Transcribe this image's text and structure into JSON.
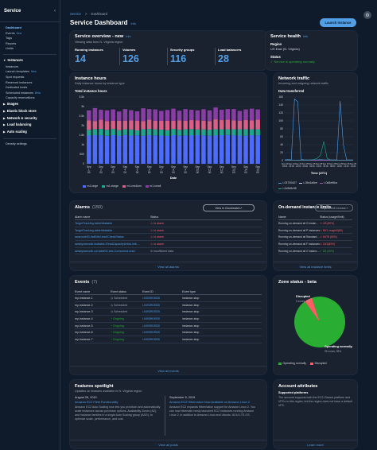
{
  "sidebar": {
    "title": "Service",
    "items": [
      {
        "label": "Dashboard",
        "type": "link",
        "active": true
      },
      {
        "label": "Events",
        "type": "link",
        "badge": "New"
      },
      {
        "label": "Tags",
        "type": "link"
      },
      {
        "label": "Reports",
        "type": "link"
      },
      {
        "label": "Limits",
        "type": "link"
      },
      {
        "type": "divider"
      },
      {
        "label": "Instances",
        "type": "header",
        "open": true
      },
      {
        "label": "Instances",
        "type": "link"
      },
      {
        "label": "Launch templates",
        "type": "link",
        "badge": "New"
      },
      {
        "label": "Spot requests",
        "type": "link"
      },
      {
        "label": "Reserved instances",
        "type": "link"
      },
      {
        "label": "Dedicated hosts",
        "type": "link"
      },
      {
        "label": "Scheduled instances",
        "type": "link",
        "badge": "Beta"
      },
      {
        "label": "Capacity reservations",
        "type": "link"
      },
      {
        "label": "Images",
        "type": "header",
        "open": false
      },
      {
        "label": "Elastic block store",
        "type": "header",
        "open": false
      },
      {
        "label": "Network & security",
        "type": "header",
        "open": false
      },
      {
        "label": "Load balancing",
        "type": "header",
        "open": false
      },
      {
        "label": "Auto scaling",
        "type": "header",
        "open": false
      },
      {
        "type": "divider"
      },
      {
        "label": "Density settings",
        "type": "link"
      }
    ]
  },
  "breadcrumb": {
    "root": "Service",
    "sep": ">",
    "current": "Dashboard"
  },
  "header": {
    "title": "Service Dashboard",
    "info": "Info",
    "launch_label": "Launch instance"
  },
  "overview": {
    "title": "Service overview - new",
    "info": "Info",
    "desc": "Viewing data from N. Virginia region",
    "kpis": [
      {
        "label": "Running instances",
        "value": "14"
      },
      {
        "label": "Volumes",
        "value": "126"
      },
      {
        "label": "Security groups",
        "value": "116"
      },
      {
        "label": "Load balancers",
        "value": "28"
      }
    ]
  },
  "health": {
    "title": "Service health",
    "info": "Info",
    "region_label": "Region",
    "region_value": "US East (N. Virginia)",
    "status_label": "Status",
    "status_value": "Service is operating normally"
  },
  "instance_hours": {
    "title": "Instance hours",
    "desc": "Daily instance hours by instance type",
    "chart_title": "Total instance hours",
    "xlabel": "Date",
    "ticks_x": [
      "Sep\n1\n00",
      "Sep\n2\n00",
      "Sep\n3\n00",
      "Sep\n4\n00",
      "Sep\n5\n00",
      "Sep\n6\n00",
      "Sep\n7\n00",
      "Sep\n8\n00",
      "Sep\n9\n00",
      "Sep\n10\n00",
      "Sep\n11\n00",
      "Sep\n12\n00",
      "Sep\n13\n00",
      "Sep\n14\n00",
      "Sep\n15\n00"
    ],
    "ticks_y": [
      "0",
      "500",
      "1k",
      "1.5k",
      "2k",
      "2.5k",
      "3k",
      "3.5k"
    ],
    "legend": [
      "m1.large",
      "m1.xlarge",
      "m1.medium",
      "m1.small"
    ]
  },
  "network": {
    "title": "Network traffic",
    "desc": "Incoming and outgoing network traffic",
    "chart_title": "Data transferred",
    "xlabel": "Time (UTC)",
    "ticks_y": [
      "0",
      "20",
      "40",
      "60",
      "80",
      "100",
      "120",
      "140",
      "160"
    ],
    "ticks_x": [
      "Sep 24\n18:00",
      "Sep 24\n20:00",
      "Sep 24\n22:00",
      "Sep 25\n00:00",
      "Sep 25\n02:00",
      "Sep 25\n04:00",
      "Sep 25\n06:00",
      "Sep 25\n08:00",
      "Sep 25\n10:00",
      "Sep 25\n12:00",
      "Sep 25\n14:00"
    ],
    "legend": [
      "i-03730407",
      "i-05d4a5ee",
      "i-0a8ef6ba",
      "i-0c5b8c38"
    ]
  },
  "chart_data": [
    {
      "type": "bar",
      "stacked": true,
      "title": "Total instance hours",
      "xlabel": "Date",
      "ylabel": "",
      "ylim": [
        0,
        3500
      ],
      "categories": [
        "Sep 1",
        "",
        "Sep 2",
        "",
        "Sep 3",
        "",
        "Sep 4",
        "",
        "Sep 5",
        "",
        "Sep 6",
        "",
        "Sep 7",
        "",
        "Sep 8",
        "",
        "Sep 9",
        "",
        "Sep 10",
        "",
        "Sep 11",
        "",
        "Sep 12",
        "",
        "Sep 13",
        "",
        "Sep 14",
        "",
        "Sep 15"
      ],
      "series": [
        {
          "name": "m1.large",
          "color": "#4d6bff",
          "values": [
            1480,
            1500,
            1490,
            1470,
            1500,
            1460,
            1510,
            1480,
            1490,
            1470,
            1500,
            1490,
            1480,
            1460,
            1500,
            1470,
            1490,
            1480,
            1500,
            1490,
            1470,
            1480,
            1500,
            1510,
            1490,
            1480,
            1470,
            1500,
            1490
          ]
        },
        {
          "name": "m1.xlarge",
          "color": "#1fa68f",
          "values": [
            300,
            320,
            340,
            310,
            330,
            300,
            300,
            320,
            260,
            340,
            330,
            320,
            310,
            300,
            330,
            310,
            320,
            340,
            300,
            310,
            320,
            330,
            310,
            300,
            320,
            330,
            340,
            310,
            320
          ]
        },
        {
          "name": "m1.medium",
          "color": "#d95f87",
          "values": [
            500,
            420,
            480,
            460,
            420,
            500,
            440,
            470,
            500,
            420,
            480,
            440,
            460,
            500,
            420,
            500,
            440,
            470,
            480,
            460,
            450,
            520,
            480,
            500,
            460,
            440,
            480,
            460,
            500
          ]
        },
        {
          "name": "m1.small",
          "color": "#8a3ea5",
          "values": [
            520,
            680,
            520,
            560,
            600,
            480,
            620,
            540,
            500,
            680,
            560,
            600,
            520,
            560,
            640,
            500,
            620,
            540,
            520,
            600,
            560,
            620,
            540,
            560,
            600,
            520,
            560,
            620,
            540
          ]
        }
      ]
    },
    {
      "type": "line",
      "title": "Data transferred",
      "xlabel": "Time (UTC)",
      "ylabel": "",
      "ylim": [
        0,
        160
      ],
      "x": [
        "18:00",
        "19:00",
        "20:00",
        "21:00",
        "22:00",
        "23:00",
        "00:00",
        "01:00",
        "02:00",
        "03:00",
        "04:00",
        "05:00",
        "06:00",
        "07:00",
        "08:00",
        "09:00",
        "10:00",
        "11:00",
        "12:00",
        "13:00",
        "14:00",
        "15:00"
      ],
      "series": [
        {
          "name": "i-03730407",
          "color": "#539fe5",
          "values": [
            2,
            3,
            2,
            155,
            148,
            3,
            2,
            2,
            2,
            2,
            2,
            3,
            2,
            2,
            2,
            2,
            2,
            150,
            40,
            2,
            2,
            2
          ]
        },
        {
          "name": "i-05d4a5ee",
          "color": "#c2d4ff",
          "values": [
            1,
            1,
            1,
            1,
            1,
            1,
            1,
            1,
            1,
            1,
            1,
            1,
            1,
            1,
            1,
            1,
            1,
            1,
            1,
            1,
            1,
            1
          ]
        },
        {
          "name": "i-0a8ef6ba",
          "color": "#b14fc5",
          "values": [
            1,
            1,
            1,
            1,
            1,
            1,
            1,
            1,
            1,
            1,
            1,
            1,
            1,
            1,
            1,
            1,
            1,
            1,
            1,
            1,
            1,
            1
          ]
        },
        {
          "name": "i-0c5b8c38",
          "color": "#1fa68f",
          "values": [
            1,
            1,
            1,
            1,
            1,
            1,
            1,
            1,
            2,
            3,
            6,
            14,
            48,
            6,
            2,
            1,
            1,
            1,
            1,
            1,
            1,
            1
          ]
        }
      ]
    },
    {
      "type": "pie",
      "title": "",
      "categories": [
        "Operating normally",
        "Disrupted"
      ],
      "values": [
        95,
        5
      ],
      "colors": [
        "#29ad32",
        "#ff5d64"
      ]
    }
  ],
  "alarms": {
    "title": "Alarms",
    "count": "(150)",
    "cw_btn": "View in Cloudwatch",
    "col_name": "Alarm name",
    "col_status": "Status",
    "rows": [
      {
        "name": "TargetTracking-table/dbstable",
        "status": "In alarm",
        "kind": "alarm"
      },
      {
        "name": "TargetTracking-table/dbstable",
        "status": "In alarm",
        "kind": "alarm"
      },
      {
        "name": "awsroute53-9a6f4fcf-low0CheckStatus",
        "status": "In alarm",
        "kind": "alarm"
      },
      {
        "name": "awsdynamodb-testtable-ReadCapacityUnitsLimit-...",
        "status": "In alarm",
        "kind": "alarm"
      },
      {
        "name": "awsdynamodb-rpt-table04-test-Consumed-read",
        "status": "Insufficient data",
        "kind": "insufficient"
      }
    ],
    "footer": "View all alarms"
  },
  "limits": {
    "title": "On-demand instance limits",
    "req_btn": "Request limit increase",
    "col_name": "Name",
    "col_status": "Status (usage/limit)",
    "rows": [
      {
        "name": "Running on-demand all G instances",
        "status": "4/5 (80%)",
        "kind": "warn"
      },
      {
        "name": "Running on-demand all P instances",
        "status": "86/1 usage/6(80)",
        "kind": "warn"
      },
      {
        "name": "Running on-demand all Standard instan...",
        "status": "60/78 (80%)",
        "kind": "warn"
      },
      {
        "name": "Running on-demand all F instances",
        "status": "18/1(80%)",
        "kind": "warn"
      },
      {
        "name": "Running on-demand all X instances",
        "status": "2/5 (40%)",
        "kind": "ok"
      }
    ],
    "footer": "View all instance limits"
  },
  "events": {
    "title": "Events",
    "count": "(7)",
    "cols": [
      "Event name",
      "Event status",
      "Event ID",
      "Event type"
    ],
    "rows": [
      {
        "name": "my-instance-1",
        "status": "Scheduled",
        "kind": "scheduled",
        "id": "i-0493f91f530",
        "type": "instance-stop"
      },
      {
        "name": "my-instance-2",
        "status": "Scheduled",
        "kind": "scheduled",
        "id": "i-0493f91f530",
        "type": "instance-stop"
      },
      {
        "name": "my-instance-3",
        "status": "Scheduled",
        "kind": "scheduled",
        "id": "i-0493f91f530",
        "type": "instance-stop"
      },
      {
        "name": "my-instance-4",
        "status": "Ongoing",
        "kind": "ongoing",
        "id": "i-0493f91f530",
        "type": "instance-stop"
      },
      {
        "name": "my-instance-5",
        "status": "Ongoing",
        "kind": "ongoing",
        "id": "i-0493f91f530",
        "type": "instance-stop"
      },
      {
        "name": "my-instance-6",
        "status": "Ongoing",
        "kind": "ongoing",
        "id": "i-0493f91f530",
        "type": "instance-stop"
      },
      {
        "name": "my-instance-7",
        "status": "Ongoing",
        "kind": "ongoing",
        "id": "i-0493f91f530",
        "type": "instance-stop"
      }
    ],
    "footer": "View all events"
  },
  "zone": {
    "title": "Zone status - beta",
    "disrupted_label": "Disrupted",
    "disrupted_sub": "5 zones, 5%",
    "normal_label": "Operating normally",
    "normal_sub": "95 zones, 95%",
    "legend": [
      "Operating normally",
      "Disrupted"
    ]
  },
  "features": {
    "title": "Features spotlight",
    "desc": "Updates on features available in N. Virginia region",
    "items": [
      {
        "date": "August 26, 2019",
        "link": "Amazon EC2 Fleet Functionality",
        "body": "Amazon EC2 Auto Scaling now lets you provision and automatically scale instances across purchase options, Availability Zones (AZ), and instance families in a single Auto Scaling group (ASG), to optimize scale, performance, and cost."
      },
      {
        "date": "September 5, 2019",
        "link": "Amazon EC2 Hibernation Now Available on Amazon Linux 2",
        "body": "Amazon EC2 expands Hibernation support for Amazon Linux 2. You can now hibernate newly launched EC2 instances running Amazon Linux 2, in addition to Amazon Linux and Ubuntu 18.04 LTS OS."
      }
    ],
    "footer": "View all posts"
  },
  "account": {
    "title": "Account attributes",
    "subtitle": "Supported platforms",
    "body": "The account supports both the EC2-Classic platform and VPCs in this region, but the region does not have a default VPC.",
    "footer": "Learn more"
  }
}
